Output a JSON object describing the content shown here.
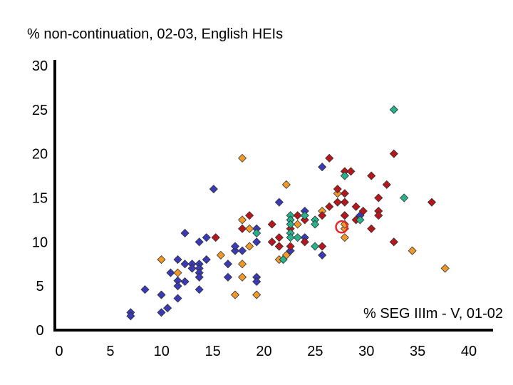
{
  "chart_data": {
    "type": "scatter",
    "title": "% non-continuation, 02-03, English HEIs",
    "xlabel": "% SEG IIIm - V, 01-02",
    "ylabel": "",
    "xlim": [
      0,
      40
    ],
    "ylim": [
      0,
      30
    ],
    "x_ticks": [
      "0",
      "5",
      "10",
      "15",
      "20",
      "25",
      "30",
      "35",
      "40"
    ],
    "y_ticks": [
      "0",
      "5",
      "10",
      "15",
      "20",
      "25",
      "30"
    ],
    "grid": false,
    "marker": "diamond",
    "series": [
      {
        "color": "#3a3ab5",
        "points": [
          [
            7.4,
            2.0
          ],
          [
            7.4,
            1.6
          ],
          [
            8.8,
            4.6
          ],
          [
            10.4,
            4.0
          ],
          [
            10.4,
            2.0
          ],
          [
            11.0,
            2.5
          ],
          [
            11.3,
            6.5
          ],
          [
            12.0,
            8.0
          ],
          [
            12.0,
            5.6
          ],
          [
            12.0,
            5.0
          ],
          [
            12.0,
            3.6
          ],
          [
            12.7,
            11.0
          ],
          [
            12.7,
            7.5
          ],
          [
            12.7,
            5.5
          ],
          [
            13.4,
            7.5
          ],
          [
            13.4,
            7.0
          ],
          [
            14.1,
            7.5
          ],
          [
            14.1,
            7.0
          ],
          [
            14.1,
            6.5
          ],
          [
            14.1,
            6.0
          ],
          [
            14.1,
            4.6
          ],
          [
            14.1,
            10.0
          ],
          [
            14.8,
            10.5
          ],
          [
            14.8,
            8.0
          ],
          [
            15.5,
            16.0
          ],
          [
            16.9,
            7.5
          ],
          [
            16.9,
            6.0
          ],
          [
            17.6,
            9.0
          ],
          [
            17.6,
            9.5
          ],
          [
            18.3,
            9.0
          ],
          [
            19.7,
            11.5
          ],
          [
            19.7,
            10.0
          ],
          [
            19.7,
            6.0
          ],
          [
            19.7,
            5.5
          ],
          [
            21.9,
            14.5
          ],
          [
            21.9,
            9.5
          ],
          [
            23.0,
            9.0
          ],
          [
            24.4,
            13.5
          ],
          [
            24.4,
            10.5
          ],
          [
            26.1,
            18.5
          ],
          [
            26.1,
            8.5
          ],
          [
            28.3,
            13.0
          ],
          [
            29.8,
            13.0
          ]
        ]
      },
      {
        "color": "#f0982a",
        "points": [
          [
            10.4,
            8.0
          ],
          [
            12.0,
            6.5
          ],
          [
            16.2,
            8.5
          ],
          [
            17.6,
            4.0
          ],
          [
            18.3,
            7.5
          ],
          [
            18.3,
            6.0
          ],
          [
            18.3,
            12.5
          ],
          [
            18.3,
            19.5
          ],
          [
            19.0,
            9.5
          ],
          [
            19.0,
            11.5
          ],
          [
            19.7,
            4.0
          ],
          [
            21.9,
            8.0
          ],
          [
            22.6,
            16.5
          ],
          [
            22.6,
            8.5
          ],
          [
            23.7,
            12.0
          ],
          [
            26.1,
            13.5
          ],
          [
            27.6,
            15.5
          ],
          [
            28.3,
            11.5
          ],
          [
            28.3,
            10.5
          ],
          [
            28.3,
            12.0
          ],
          [
            34.9,
            9.0
          ],
          [
            38.1,
            7.0
          ]
        ]
      },
      {
        "color": "#b5171c",
        "points": [
          [
            15.7,
            10.5
          ],
          [
            18.3,
            11.5
          ],
          [
            19.0,
            13.0
          ],
          [
            21.2,
            12.0
          ],
          [
            21.2,
            10.0
          ],
          [
            21.9,
            10.5
          ],
          [
            21.9,
            9.5
          ],
          [
            23.0,
            9.5
          ],
          [
            23.0,
            11.5
          ],
          [
            23.7,
            13.0
          ],
          [
            24.4,
            10.0
          ],
          [
            24.4,
            12.5
          ],
          [
            26.1,
            13.0
          ],
          [
            26.1,
            9.5
          ],
          [
            26.8,
            19.5
          ],
          [
            26.8,
            14.0
          ],
          [
            27.6,
            14.5
          ],
          [
            27.6,
            16.0
          ],
          [
            28.3,
            18.0
          ],
          [
            28.3,
            15.5
          ],
          [
            28.3,
            14.5
          ],
          [
            28.3,
            13.0
          ],
          [
            28.9,
            18.0
          ],
          [
            29.4,
            14.0
          ],
          [
            29.4,
            12.5
          ],
          [
            30.1,
            13.5
          ],
          [
            30.9,
            17.5
          ],
          [
            30.9,
            11.5
          ],
          [
            31.6,
            15.0
          ],
          [
            31.6,
            13.5
          ],
          [
            31.6,
            13.0
          ],
          [
            32.4,
            16.5
          ],
          [
            33.1,
            20.0
          ],
          [
            33.1,
            10.0
          ],
          [
            36.8,
            14.5
          ]
        ]
      },
      {
        "color": "#27b08a",
        "points": [
          [
            19.7,
            11.0
          ],
          [
            22.3,
            8.0
          ],
          [
            23.0,
            13.0
          ],
          [
            23.0,
            12.5
          ],
          [
            23.0,
            12.0
          ],
          [
            23.0,
            11.0
          ],
          [
            23.0,
            10.5
          ],
          [
            23.7,
            10.5
          ],
          [
            24.4,
            13.0
          ],
          [
            25.4,
            12.5
          ],
          [
            25.4,
            12.0
          ],
          [
            25.4,
            9.5
          ],
          [
            28.3,
            17.5
          ],
          [
            29.8,
            12.5
          ],
          [
            33.1,
            25.0
          ],
          [
            34.1,
            15.0
          ]
        ]
      }
    ],
    "highlight": {
      "x": 28.0,
      "y": 11.7,
      "color": "#e8262a"
    }
  }
}
